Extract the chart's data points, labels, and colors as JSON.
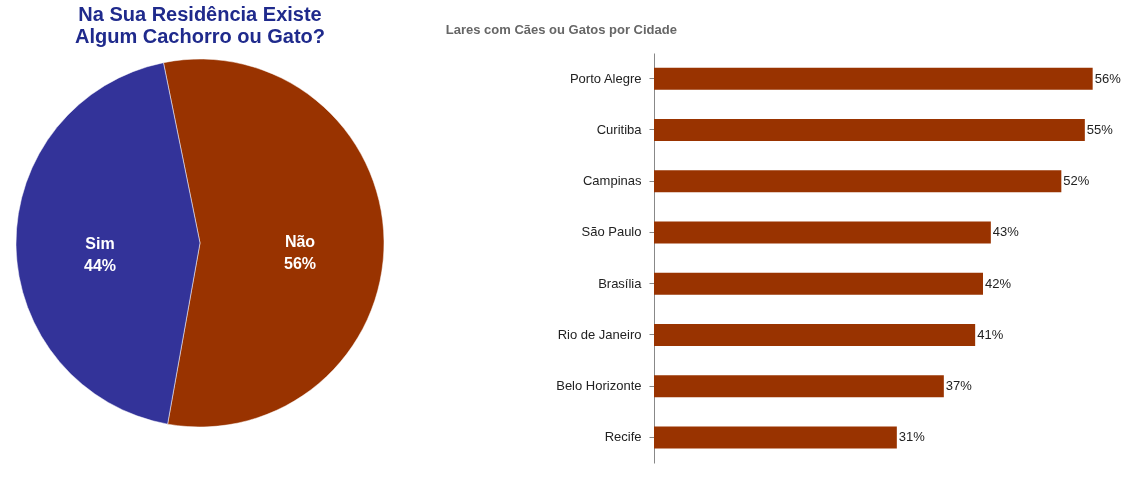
{
  "chart_data": [
    {
      "type": "pie",
      "title": "Na Sua Residência Existe\nAlgum Cachorro ou Gato?",
      "categories": [
        "Não",
        "Sim"
      ],
      "values": [
        56,
        44
      ],
      "colors": [
        "#993300",
        "#333399"
      ],
      "value_labels": [
        "56%",
        "44%"
      ]
    },
    {
      "type": "bar",
      "orientation": "horizontal",
      "title": "Lares com Cães ou Gatos por Cidade",
      "categories": [
        "Porto Alegre",
        "Curitiba",
        "Campinas",
        "São Paulo",
        "Brasília",
        "Rio de Janeiro",
        "Belo Horizonte",
        "Recife"
      ],
      "values": [
        56,
        55,
        52,
        43,
        42,
        41,
        37,
        31
      ],
      "color": "#993300",
      "value_labels": [
        "56%",
        "55%",
        "52%",
        "43%",
        "42%",
        "41%",
        "37%",
        "31%"
      ],
      "tick_labels": "y"
    }
  ]
}
